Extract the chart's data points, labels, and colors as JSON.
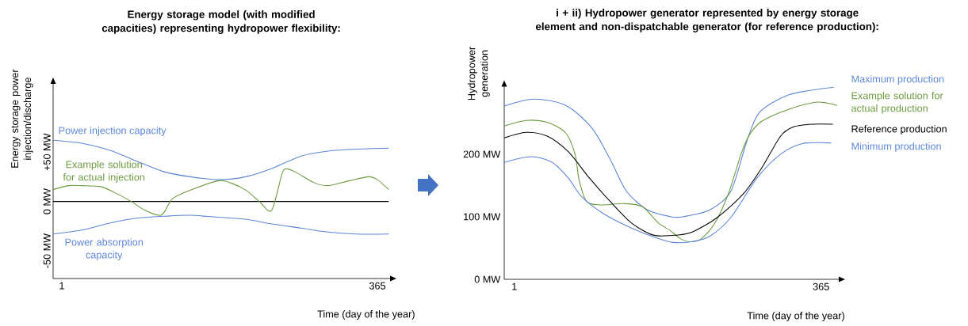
{
  "chart_data": [
    {
      "type": "line",
      "title": "Energy storage model (with modified capacities) representing hydropower flexibility:",
      "xlabel": "Time (day of the year)",
      "ylabel": "Energy storage power injection/discharge",
      "xlim": [
        -9,
        379.6
      ],
      "ylim": [
        -78,
        119
      ],
      "xticks": [
        1,
        365
      ],
      "yticks": [
        {
          "value": -50,
          "label": "-50 MW"
        },
        {
          "value": 0,
          "label": "0 MW"
        },
        {
          "value": 50,
          "label": "+50 MW"
        }
      ],
      "ref_lines": [
        {
          "axis": "y",
          "value": 0,
          "color": "#000000"
        }
      ],
      "series": [
        {
          "name": "Power injection capacity",
          "color": "#5b86d6",
          "x": [
            -9,
            24,
            56,
            87,
            119,
            149,
            182,
            213,
            245,
            277,
            308,
            340,
            378
          ],
          "values": [
            62,
            59,
            52,
            41,
            30,
            25,
            22,
            25,
            34,
            46,
            51,
            53,
            54
          ]
        },
        {
          "name": "Example solution for actual injection",
          "color": "#6a9a3c",
          "x": [
            -9,
            9,
            24,
            46,
            62,
            81,
            97,
            113,
            119,
            129,
            151,
            182,
            198,
            214,
            230,
            243,
            255,
            260,
            270,
            292,
            308,
            333,
            355,
            365,
            378
          ],
          "values": [
            12,
            16,
            16,
            15,
            9,
            0,
            -9,
            -14,
            -11,
            3,
            12,
            21,
            18,
            11,
            -1,
            -9,
            28,
            33,
            30,
            19,
            16,
            21,
            25,
            22,
            12
          ]
        },
        {
          "name": "Power absorption capacity",
          "color": "#5b86d6",
          "x": [
            -9,
            24,
            56,
            87,
            119,
            149,
            182,
            213,
            245,
            277,
            308,
            340,
            378
          ],
          "values": [
            -33,
            -29,
            -22,
            -17,
            -15,
            -14,
            -16,
            -18,
            -23,
            -27,
            -31,
            -33,
            -33
          ]
        }
      ]
    },
    {
      "type": "line",
      "title": "i + ii) Hydropower generator represented by energy storage element and non-dispatchable generator (for reference production):",
      "xlabel": "Time (day of the year)",
      "ylabel": "Hydropower generation",
      "xlim": [
        -11,
        386
      ],
      "ylim": [
        0,
        308
      ],
      "xticks": [
        1,
        365
      ],
      "yticks": [
        {
          "value": 0,
          "label": "0 MW"
        },
        {
          "value": 100,
          "label": "100 MW"
        },
        {
          "value": 200,
          "label": "200 MW"
        }
      ],
      "series": [
        {
          "name": "Maximum production",
          "color": "#5b86d6",
          "x": [
            -11,
            24,
            62,
            93,
            115,
            134,
            159,
            187,
            201,
            233,
            258,
            277,
            292,
            327,
            380
          ],
          "values": [
            277,
            288,
            278,
            242,
            191,
            141,
            111,
            100,
            100,
            111,
            141,
            221,
            267,
            295,
            307
          ]
        },
        {
          "name": "Example solution for actual production",
          "color": "#6a9a3c",
          "x": [
            -11,
            15,
            40,
            62,
            73,
            78,
            87,
            103,
            131,
            153,
            172,
            186,
            198,
            211,
            223,
            239,
            255,
            270,
            280,
            295,
            327,
            358,
            371,
            384
          ],
          "values": [
            245,
            254,
            251,
            234,
            200,
            158,
            124,
            119,
            121,
            116,
            90,
            78,
            65,
            60,
            65,
            90,
            137,
            200,
            231,
            253,
            272,
            283,
            282,
            278
          ]
        },
        {
          "name": "Reference production",
          "color": "#000000",
          "x": [
            -11,
            15,
            40,
            65,
            90,
            115,
            140,
            165,
            186,
            211,
            242,
            273,
            295,
            317,
            333,
            355,
            379
          ],
          "values": [
            226,
            235,
            229,
            204,
            162,
            124,
            90,
            71,
            70,
            75,
            99,
            137,
            179,
            229,
            244,
            248,
            248
          ]
        },
        {
          "name": "Minimum production",
          "color": "#5b86d6",
          "x": [
            -11,
            21,
            46,
            65,
            81,
            109,
            140,
            172,
            189,
            211,
            233,
            258,
            289,
            317,
            343,
            377
          ],
          "values": [
            187,
            196,
            187,
            162,
            132,
            103,
            82,
            65,
            59,
            60,
            69,
            99,
            162,
            200,
            217,
            218
          ]
        }
      ]
    }
  ]
}
